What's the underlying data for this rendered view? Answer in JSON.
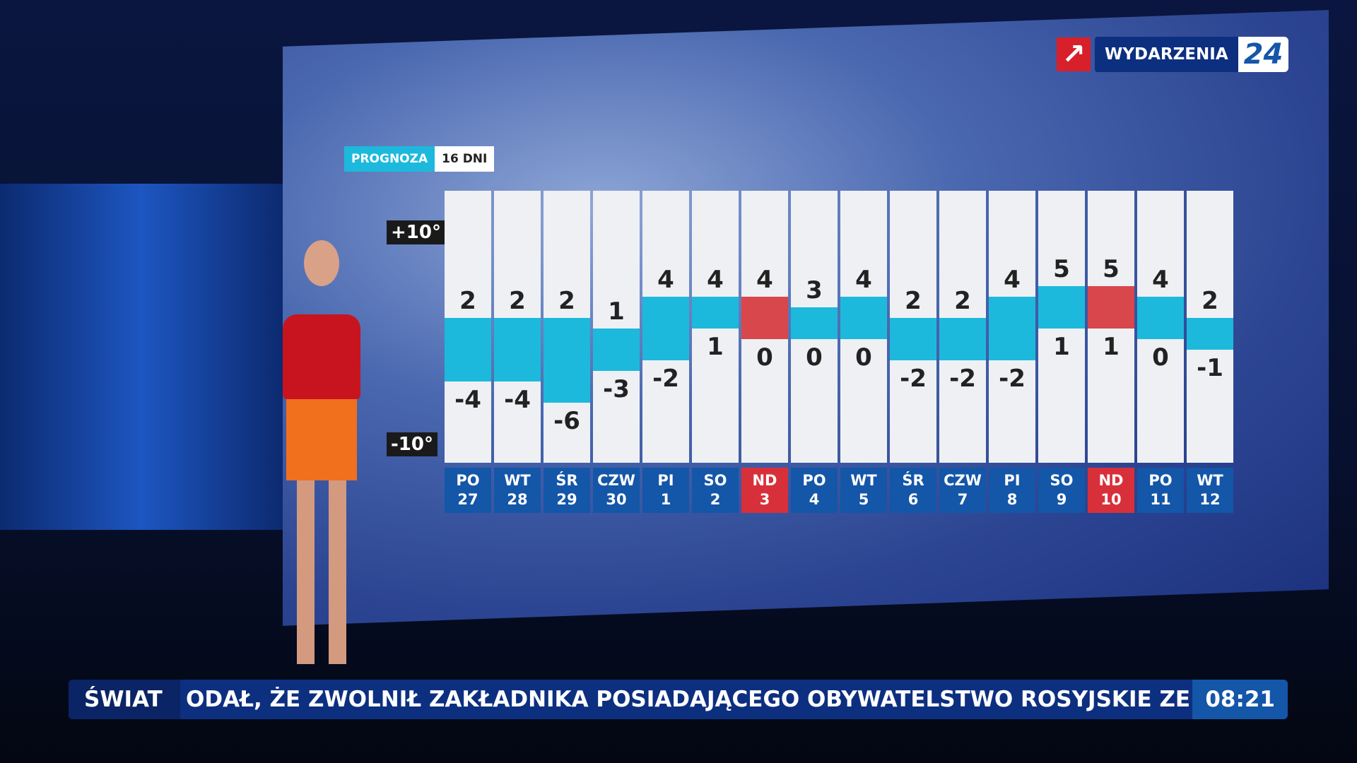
{
  "channel": {
    "name": "WYDARZENIA",
    "number": "24"
  },
  "badge": {
    "label": "PROGNOZA",
    "period": "16 DNI"
  },
  "ticker": {
    "section": "ŚWIAT",
    "text": "ODAŁ, ŻE ZWOLNIŁ ZAKŁADNIKA POSIADAJĄCEGO OBYWATELSTWO ROSYJSKIE ZE WZG",
    "time": "08:21"
  },
  "chart_data": {
    "type": "range-bar",
    "categories": [
      "PO 27",
      "WT 28",
      "ŚR 29",
      "CZW 30",
      "PI 1",
      "SO 2",
      "ND 3",
      "PO 4",
      "WT 5",
      "ŚR 6",
      "CZW 7",
      "PI 8",
      "SO 9",
      "ND 10",
      "PO 11",
      "WT 12"
    ],
    "high": [
      2,
      2,
      2,
      1,
      4,
      4,
      4,
      3,
      4,
      2,
      2,
      4,
      5,
      5,
      4,
      2
    ],
    "low": [
      -4,
      -4,
      -6,
      -3,
      -2,
      1,
      0,
      0,
      0,
      -2,
      -2,
      -2,
      1,
      1,
      0,
      -1
    ],
    "colors": [
      "#1db9dc",
      "#1db9dc",
      "#1db9dc",
      "#1db9dc",
      "#1db9dc",
      "#1db9dc",
      "#d8474c",
      "#1db9dc",
      "#1db9dc",
      "#1db9dc",
      "#1db9dc",
      "#1db9dc",
      "#1db9dc",
      "#d8474c",
      "#1db9dc",
      "#1db9dc"
    ],
    "label_colors": [
      "#1456a8",
      "#1456a8",
      "#1456a8",
      "#1456a8",
      "#1456a8",
      "#1456a8",
      "#d8303a",
      "#1456a8",
      "#1456a8",
      "#1456a8",
      "#1456a8",
      "#1456a8",
      "#1456a8",
      "#d8303a",
      "#1456a8",
      "#1456a8"
    ],
    "ylim": [
      -10,
      10
    ],
    "yticks": [
      {
        "value": 10,
        "label": "+10°"
      },
      {
        "value": -10,
        "label": "-10°"
      }
    ]
  }
}
